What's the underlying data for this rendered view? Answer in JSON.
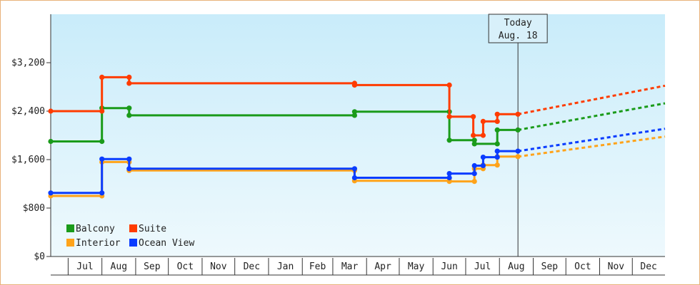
{
  "chart_data": {
    "type": "line",
    "title": "",
    "xlabel": "",
    "ylabel": "",
    "ylim": [
      0,
      4000
    ],
    "y_ticks": [
      0,
      800,
      1600,
      2400,
      3200
    ],
    "y_tick_labels": [
      "$0",
      "$800",
      "$1,600",
      "$2,400",
      "$3,200"
    ],
    "x_range": [
      "2017-06-15",
      "2018-12-31"
    ],
    "months": [
      {
        "label": "Jul",
        "start": "2017-07-01"
      },
      {
        "label": "Aug",
        "start": "2017-08-01"
      },
      {
        "label": "Sep",
        "start": "2017-09-01"
      },
      {
        "label": "Oct",
        "start": "2017-10-01"
      },
      {
        "label": "Nov",
        "start": "2017-11-01"
      },
      {
        "label": "Dec",
        "start": "2017-12-01"
      },
      {
        "label": "Jan",
        "start": "2018-01-01"
      },
      {
        "label": "Feb",
        "start": "2018-02-01"
      },
      {
        "label": "Mar",
        "start": "2018-03-01"
      },
      {
        "label": "Apr",
        "start": "2018-04-01"
      },
      {
        "label": "May",
        "start": "2018-05-01"
      },
      {
        "label": "Jun",
        "start": "2018-06-01"
      },
      {
        "label": "Jul",
        "start": "2018-07-01"
      },
      {
        "label": "Aug",
        "start": "2018-08-01"
      },
      {
        "label": "Sep",
        "start": "2018-09-01"
      },
      {
        "label": "Oct",
        "start": "2018-10-01"
      },
      {
        "label": "Nov",
        "start": "2018-11-01"
      },
      {
        "label": "Dec",
        "start": "2018-12-01"
      }
    ],
    "today": {
      "line1": "Today",
      "line2": "Aug. 18",
      "date": "2018-08-18"
    },
    "grid": false,
    "legend_position": "bottom-left",
    "series": [
      {
        "name": "Balcony",
        "color": "#1a9b1a",
        "points": [
          [
            "2017-06-15",
            1900
          ],
          [
            "2017-08-01",
            1900
          ],
          [
            "2017-08-01",
            2450
          ],
          [
            "2017-08-26",
            2450
          ],
          [
            "2017-08-26",
            2330
          ],
          [
            "2018-03-21",
            2330
          ],
          [
            "2018-03-21",
            2390
          ],
          [
            "2018-06-16",
            2390
          ],
          [
            "2018-06-16",
            1920
          ],
          [
            "2018-07-09",
            1920
          ],
          [
            "2018-07-09",
            1860
          ],
          [
            "2018-07-30",
            1860
          ],
          [
            "2018-07-30",
            2090
          ],
          [
            "2018-08-18",
            2090
          ]
        ],
        "projection": [
          [
            "2018-08-18",
            2090
          ],
          [
            "2018-12-31",
            2530
          ]
        ]
      },
      {
        "name": "Suite",
        "color": "#ff3c00",
        "points": [
          [
            "2017-06-15",
            2400
          ],
          [
            "2017-08-01",
            2400
          ],
          [
            "2017-08-01",
            2960
          ],
          [
            "2017-08-26",
            2960
          ],
          [
            "2017-08-26",
            2860
          ],
          [
            "2018-03-21",
            2860
          ],
          [
            "2018-03-21",
            2830
          ],
          [
            "2018-06-16",
            2830
          ],
          [
            "2018-06-16",
            2310
          ],
          [
            "2018-07-08",
            2310
          ],
          [
            "2018-07-08",
            2000
          ],
          [
            "2018-07-17",
            2000
          ],
          [
            "2018-07-17",
            2230
          ],
          [
            "2018-07-30",
            2230
          ],
          [
            "2018-07-30",
            2350
          ],
          [
            "2018-08-18",
            2350
          ]
        ],
        "projection": [
          [
            "2018-08-18",
            2350
          ],
          [
            "2018-12-31",
            2820
          ]
        ]
      },
      {
        "name": "Interior",
        "color": "#ffa31a",
        "points": [
          [
            "2017-06-15",
            1000
          ],
          [
            "2017-08-01",
            1000
          ],
          [
            "2017-08-01",
            1560
          ],
          [
            "2017-08-26",
            1560
          ],
          [
            "2017-08-26",
            1420
          ],
          [
            "2018-03-21",
            1420
          ],
          [
            "2018-03-21",
            1250
          ],
          [
            "2018-06-16",
            1250
          ],
          [
            "2018-06-16",
            1240
          ],
          [
            "2018-07-09",
            1240
          ],
          [
            "2018-07-09",
            1450
          ],
          [
            "2018-07-17",
            1450
          ],
          [
            "2018-07-17",
            1510
          ],
          [
            "2018-07-30",
            1510
          ],
          [
            "2018-07-30",
            1650
          ],
          [
            "2018-08-18",
            1650
          ]
        ],
        "projection": [
          [
            "2018-08-18",
            1650
          ],
          [
            "2018-12-31",
            1980
          ]
        ]
      },
      {
        "name": "Ocean View",
        "color": "#0a3cff",
        "points": [
          [
            "2017-06-15",
            1050
          ],
          [
            "2017-08-01",
            1050
          ],
          [
            "2017-08-01",
            1610
          ],
          [
            "2017-08-26",
            1610
          ],
          [
            "2017-08-26",
            1450
          ],
          [
            "2018-03-21",
            1450
          ],
          [
            "2018-03-21",
            1300
          ],
          [
            "2018-06-16",
            1300
          ],
          [
            "2018-06-16",
            1370
          ],
          [
            "2018-07-09",
            1370
          ],
          [
            "2018-07-09",
            1500
          ],
          [
            "2018-07-17",
            1500
          ],
          [
            "2018-07-17",
            1640
          ],
          [
            "2018-07-30",
            1640
          ],
          [
            "2018-07-30",
            1740
          ],
          [
            "2018-08-18",
            1740
          ]
        ],
        "projection": [
          [
            "2018-08-18",
            1740
          ],
          [
            "2018-12-31",
            2110
          ]
        ]
      }
    ]
  }
}
